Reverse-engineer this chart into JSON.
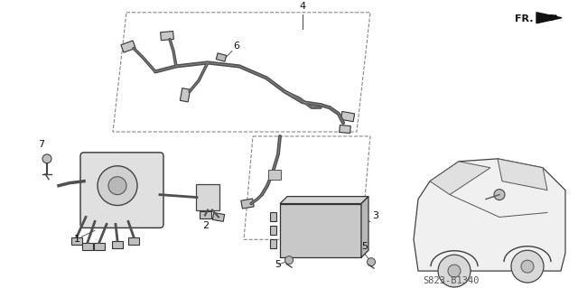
{
  "background_color": "#ffffff",
  "fig_width": 6.4,
  "fig_height": 3.19,
  "dpi": 100,
  "diagram_code": "S823-B1340",
  "line_color": "#404040",
  "text_color": "#111111",
  "gray_fill": "#c8c8c8",
  "light_gray": "#e8e8e8",
  "mid_gray": "#a0a0a0",
  "dark_gray": "#606060"
}
